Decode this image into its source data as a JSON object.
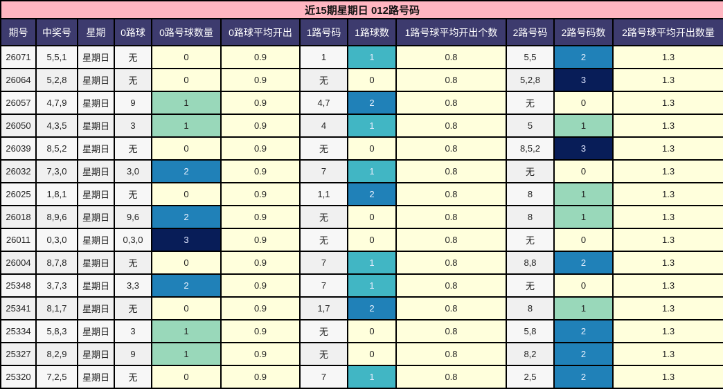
{
  "title": "近15期星期日 012路号码",
  "columns": [
    "期号",
    "中奖号",
    "星期",
    "0路球",
    "0路号球数量",
    "0路球平均开出",
    "1路号码",
    "1路球数",
    "1路号球平均开出个数",
    "2路号码",
    "2路号码数",
    "2路号球平均开出数量"
  ],
  "colors": {
    "title_bg": "#ffb6c1",
    "header_bg": "#3d3b6e",
    "cell_yellow": "#ffffdc",
    "count_1_green": "#99d8ba",
    "count_1_teal": "#41b6c4",
    "count_2": "#2081b8",
    "count_3": "#081d58"
  },
  "rows": [
    {
      "issue": "26071",
      "numbers": "5,5,1",
      "weekday": "星期日",
      "r0": "无",
      "r0_count": "0",
      "r0_avg": "0.9",
      "r1": "1",
      "r1_count": "1",
      "r1_avg": "0.8",
      "r2": "5,5",
      "r2_count": "2",
      "r2_avg": "1.3"
    },
    {
      "issue": "26064",
      "numbers": "5,2,8",
      "weekday": "星期日",
      "r0": "无",
      "r0_count": "0",
      "r0_avg": "0.9",
      "r1": "无",
      "r1_count": "0",
      "r1_avg": "0.8",
      "r2": "5,2,8",
      "r2_count": "3",
      "r2_avg": "1.3"
    },
    {
      "issue": "26057",
      "numbers": "4,7,9",
      "weekday": "星期日",
      "r0": "9",
      "r0_count": "1",
      "r0_avg": "0.9",
      "r1": "4,7",
      "r1_count": "2",
      "r1_avg": "0.8",
      "r2": "无",
      "r2_count": "0",
      "r2_avg": "1.3"
    },
    {
      "issue": "26050",
      "numbers": "4,3,5",
      "weekday": "星期日",
      "r0": "3",
      "r0_count": "1",
      "r0_avg": "0.9",
      "r1": "4",
      "r1_count": "1",
      "r1_avg": "0.8",
      "r2": "5",
      "r2_count": "1",
      "r2_avg": "1.3"
    },
    {
      "issue": "26039",
      "numbers": "8,5,2",
      "weekday": "星期日",
      "r0": "无",
      "r0_count": "0",
      "r0_avg": "0.9",
      "r1": "无",
      "r1_count": "0",
      "r1_avg": "0.8",
      "r2": "8,5,2",
      "r2_count": "3",
      "r2_avg": "1.3"
    },
    {
      "issue": "26032",
      "numbers": "7,3,0",
      "weekday": "星期日",
      "r0": "3,0",
      "r0_count": "2",
      "r0_avg": "0.9",
      "r1": "7",
      "r1_count": "1",
      "r1_avg": "0.8",
      "r2": "无",
      "r2_count": "0",
      "r2_avg": "1.3"
    },
    {
      "issue": "26025",
      "numbers": "1,8,1",
      "weekday": "星期日",
      "r0": "无",
      "r0_count": "0",
      "r0_avg": "0.9",
      "r1": "1,1",
      "r1_count": "2",
      "r1_avg": "0.8",
      "r2": "8",
      "r2_count": "1",
      "r2_avg": "1.3"
    },
    {
      "issue": "26018",
      "numbers": "8,9,6",
      "weekday": "星期日",
      "r0": "9,6",
      "r0_count": "2",
      "r0_avg": "0.9",
      "r1": "无",
      "r1_count": "0",
      "r1_avg": "0.8",
      "r2": "8",
      "r2_count": "1",
      "r2_avg": "1.3"
    },
    {
      "issue": "26011",
      "numbers": "0,3,0",
      "weekday": "星期日",
      "r0": "0,3,0",
      "r0_count": "3",
      "r0_avg": "0.9",
      "r1": "无",
      "r1_count": "0",
      "r1_avg": "0.8",
      "r2": "无",
      "r2_count": "0",
      "r2_avg": "1.3"
    },
    {
      "issue": "26004",
      "numbers": "8,7,8",
      "weekday": "星期日",
      "r0": "无",
      "r0_count": "0",
      "r0_avg": "0.9",
      "r1": "7",
      "r1_count": "1",
      "r1_avg": "0.8",
      "r2": "8,8",
      "r2_count": "2",
      "r2_avg": "1.3"
    },
    {
      "issue": "25348",
      "numbers": "3,7,3",
      "weekday": "星期日",
      "r0": "3,3",
      "r0_count": "2",
      "r0_avg": "0.9",
      "r1": "7",
      "r1_count": "1",
      "r1_avg": "0.8",
      "r2": "无",
      "r2_count": "0",
      "r2_avg": "1.3"
    },
    {
      "issue": "25341",
      "numbers": "8,1,7",
      "weekday": "星期日",
      "r0": "无",
      "r0_count": "0",
      "r0_avg": "0.9",
      "r1": "1,7",
      "r1_count": "2",
      "r1_avg": "0.8",
      "r2": "8",
      "r2_count": "1",
      "r2_avg": "1.3"
    },
    {
      "issue": "25334",
      "numbers": "5,8,3",
      "weekday": "星期日",
      "r0": "3",
      "r0_count": "1",
      "r0_avg": "0.9",
      "r1": "无",
      "r1_count": "0",
      "r1_avg": "0.8",
      "r2": "5,8",
      "r2_count": "2",
      "r2_avg": "1.3"
    },
    {
      "issue": "25327",
      "numbers": "8,2,9",
      "weekday": "星期日",
      "r0": "9",
      "r0_count": "1",
      "r0_avg": "0.9",
      "r1": "无",
      "r1_count": "0",
      "r1_avg": "0.8",
      "r2": "8,2",
      "r2_count": "2",
      "r2_avg": "1.3"
    },
    {
      "issue": "25320",
      "numbers": "7,2,5",
      "weekday": "星期日",
      "r0": "无",
      "r0_count": "0",
      "r0_avg": "0.9",
      "r1": "7",
      "r1_count": "1",
      "r1_avg": "0.8",
      "r2": "2,5",
      "r2_count": "2",
      "r2_avg": "1.3"
    }
  ]
}
